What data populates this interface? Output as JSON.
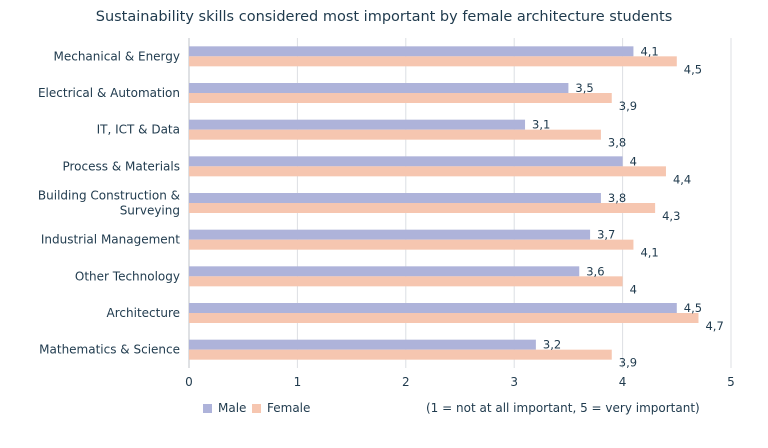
{
  "chart_data": {
    "type": "bar",
    "orientation": "horizontal",
    "title": "Sustainability skills considered most important by female architecture students",
    "categories": [
      "Mechanical & Energy",
      "Electrical & Automation",
      "IT, ICT & Data",
      "Process & Materials",
      "Building Construction & Surveying",
      "Industrial Management",
      "Other Technology",
      "Architecture",
      "Mathematics & Science"
    ],
    "series": [
      {
        "name": "Male",
        "color": "#aeb3da",
        "values": [
          4.1,
          3.5,
          3.1,
          4.0,
          3.8,
          3.7,
          3.6,
          4.5,
          3.2
        ],
        "labels": [
          "4,1",
          "3,5",
          "3,1",
          "4",
          "3,8",
          "3,7",
          "3,6",
          "4,5",
          "3,2"
        ]
      },
      {
        "name": "Female",
        "color": "#f6c6b0",
        "values": [
          4.5,
          3.9,
          3.8,
          4.4,
          4.3,
          4.1,
          4.0,
          4.7,
          3.9
        ],
        "labels": [
          "4,5",
          "3,9",
          "3,8",
          "4,4",
          "4,3",
          "4,1",
          "4",
          "4,7",
          "3,9"
        ]
      }
    ],
    "xlim": [
      0,
      5
    ],
    "xticks": [
      "0",
      "1",
      "2",
      "3",
      "4",
      "5"
    ],
    "grid": "vertical",
    "legend_position": "bottom-left",
    "note": "(1 = not at all important, 5 = very important)"
  }
}
